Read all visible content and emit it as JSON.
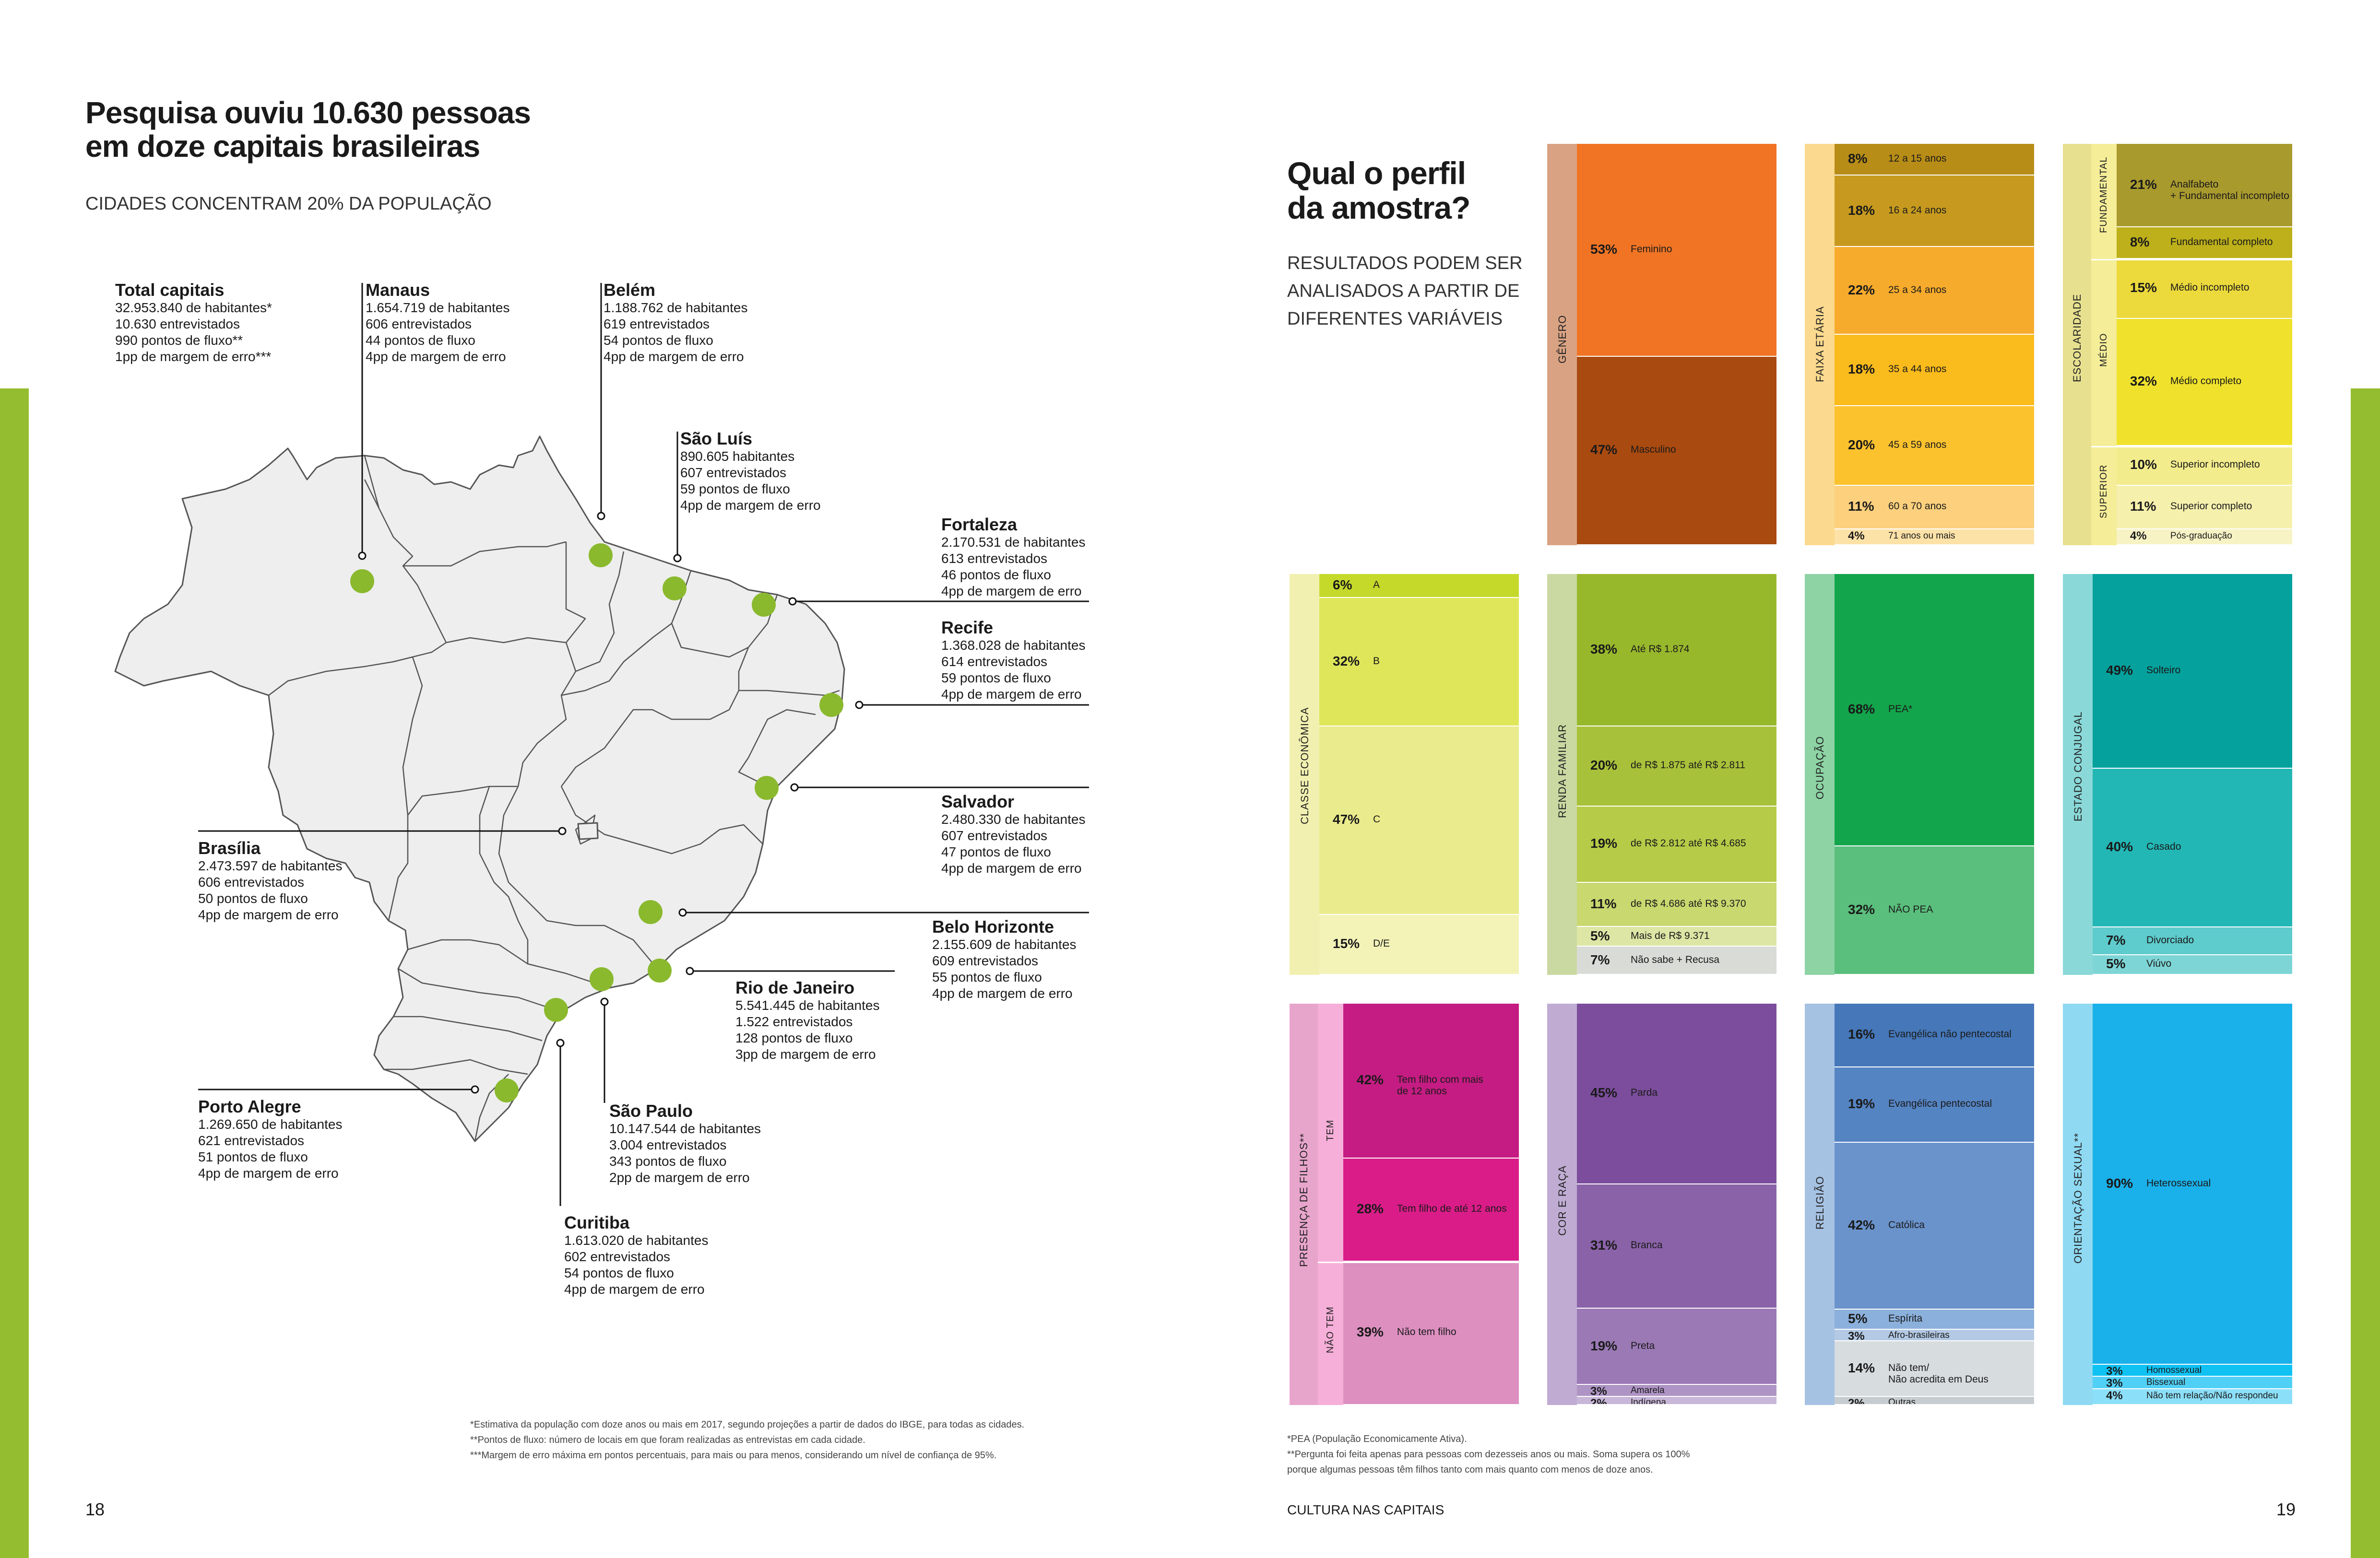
{
  "left_page": {
    "title_line1": "Pesquisa ouviu 10.630 pessoas",
    "title_line2": "em doze capitais brasileiras",
    "subtitle": "CIDADES CONCENTRAM 20% DA POPULAÇÃO",
    "page_number": "18",
    "footnotes": [
      "*Estimativa da população com doze anos ou mais em 2017, segundo projeções a partir de dados do IBGE, para todas as cidades.",
      "**Pontos de fluxo: número de locais em que foram realizadas as entrevistas em cada cidade.",
      "***Margem de erro máxima em pontos percentuais, para mais ou para menos, considerando um nível de confiança de 95%."
    ],
    "cities": {
      "total": {
        "name": "Total capitais",
        "lines": [
          "32.953.840 de habitantes*",
          "10.630 entrevistados",
          "990 pontos de fluxo**",
          "1pp de margem de erro***"
        ]
      },
      "manaus": {
        "name": "Manaus",
        "lines": [
          "1.654.719 de habitantes",
          "606 entrevistados",
          "44 pontos de fluxo",
          "4pp de margem de erro"
        ]
      },
      "belem": {
        "name": "Belém",
        "lines": [
          "1.188.762 de habitantes",
          "619 entrevistados",
          "54 pontos de fluxo",
          "4pp de margem de erro"
        ]
      },
      "saoluis": {
        "name": "São Luís",
        "lines": [
          "890.605 habitantes",
          "607 entrevistados",
          "59 pontos de fluxo",
          "4pp de margem de erro"
        ]
      },
      "fortaleza": {
        "name": "Fortaleza",
        "lines": [
          "2.170.531 de habitantes",
          "613 entrevistados",
          "46 pontos de fluxo",
          "4pp de margem de erro"
        ]
      },
      "recife": {
        "name": "Recife",
        "lines": [
          "1.368.028 de habitantes",
          "614 entrevistados",
          "59 pontos de fluxo",
          "4pp de margem de erro"
        ]
      },
      "salvador": {
        "name": "Salvador",
        "lines": [
          "2.480.330 de habitantes",
          "607 entrevistados",
          "47 pontos de fluxo",
          "4pp de margem de erro"
        ]
      },
      "brasilia": {
        "name": "Brasília",
        "lines": [
          "2.473.597 de habitantes",
          "606 entrevistados",
          "50 pontos de fluxo",
          "4pp de margem de erro"
        ]
      },
      "bh": {
        "name": "Belo Horizonte",
        "lines": [
          "2.155.609 de habitantes",
          "609 entrevistados",
          "55 pontos de fluxo",
          "4pp de margem de erro"
        ]
      },
      "rio": {
        "name": "Rio de Janeiro",
        "lines": [
          "5.541.445 de habitantes",
          "1.522 entrevistados",
          "128 pontos de fluxo",
          "3pp de margem de erro"
        ]
      },
      "portoalegre": {
        "name": "Porto Alegre",
        "lines": [
          "1.269.650 de habitantes",
          "621 entrevistados",
          "51 pontos de fluxo",
          "4pp de margem de erro"
        ]
      },
      "saopaulo": {
        "name": "São Paulo",
        "lines": [
          "10.147.544 de habitantes",
          "3.004 entrevistados",
          "343 pontos de fluxo",
          "2pp de margem de erro"
        ]
      },
      "curitiba": {
        "name": "Curitiba",
        "lines": [
          "1.613.020 de habitantes",
          "602 entrevistados",
          "54 pontos de fluxo",
          "4pp de margem de erro"
        ]
      }
    }
  },
  "right_page": {
    "title_line1": "Qual o perfil",
    "title_line2": "da amostra?",
    "subtitle_lines": [
      "RESULTADOS PODEM SER",
      "ANALISADOS A PARTIR DE",
      "DIFERENTES VARIÁVEIS"
    ],
    "footer_title": "CULTURA NAS CAPITAIS",
    "page_number": "19",
    "footnotes": [
      "*PEA (População Economicamente Ativa).",
      "**Pergunta foi feita apenas para pessoas com dezesseis anos ou mais. Soma supera os 100%",
      "porque algumas pessoas têm filhos tanto com mais quanto com menos de doze anos."
    ]
  },
  "chart_data": [
    {
      "type": "stacked-bar",
      "title": "GÊNERO",
      "colors": [
        "#f07424",
        "#a94a10"
      ],
      "strip": "#d9a383",
      "segments": [
        {
          "pct": "53%",
          "label": "Feminino",
          "value": 53
        },
        {
          "pct": "47%",
          "label": "Masculino",
          "value": 47
        }
      ]
    },
    {
      "type": "stacked-bar",
      "title": "FAIXA ETÁRIA",
      "colors": [
        "#b88d17",
        "#c79a1f",
        "#f6ab2c",
        "#fabb1c",
        "#fcc22e",
        "#fcd07d",
        "#fde2a8"
      ],
      "strip": "#fbd98e",
      "segments": [
        {
          "pct": "8%",
          "label": "12 a 15 anos",
          "value": 8
        },
        {
          "pct": "18%",
          "label": "16 a 24 anos",
          "value": 18
        },
        {
          "pct": "22%",
          "label": "25 a 34 anos",
          "value": 22
        },
        {
          "pct": "18%",
          "label": "35 a 44 anos",
          "value": 18
        },
        {
          "pct": "20%",
          "label": "45 a 59 anos",
          "value": 20
        },
        {
          "pct": "11%",
          "label": "60 a 70 anos",
          "value": 11
        },
        {
          "pct": "4%",
          "label": "71 anos ou mais",
          "value": 4
        }
      ]
    },
    {
      "type": "stacked-bar",
      "title": "ESCOLARIDADE",
      "sub_groups": [
        "FUNDAMENTAL",
        "MÉDIO",
        "SUPERIOR"
      ],
      "colors": [
        "#a99a2e",
        "#bdb01a",
        "#ecd93c",
        "#f0e22c",
        "#f3ec8d",
        "#f6f0ad",
        "#f8f3c5"
      ],
      "strip": "#e7e08f",
      "segments": [
        {
          "pct": "21%",
          "label": "Analfabeto\n+ Fundamental incompleto",
          "value": 21
        },
        {
          "pct": "8%",
          "label": "Fundamental completo",
          "value": 8
        },
        {
          "pct": "15%",
          "label": "Médio incompleto",
          "value": 15
        },
        {
          "pct": "32%",
          "label": "Médio completo",
          "value": 32
        },
        {
          "pct": "10%",
          "label": "Superior incompleto",
          "value": 10
        },
        {
          "pct": "11%",
          "label": "Superior completo",
          "value": 11
        },
        {
          "pct": "4%",
          "label": "Pós-graduação",
          "value": 4
        }
      ]
    },
    {
      "type": "stacked-bar",
      "title": "CLASSE ECONÔMICA",
      "colors": [
        "#c5d92b",
        "#dfe65a",
        "#eaeb8c",
        "#f3f3b8"
      ],
      "strip": "#f1f0b0",
      "segments": [
        {
          "pct": "6%",
          "label": "A",
          "value": 6
        },
        {
          "pct": "32%",
          "label": "B",
          "value": 32
        },
        {
          "pct": "47%",
          "label": "C",
          "value": 47
        },
        {
          "pct": "15%",
          "label": "D/E",
          "value": 15
        }
      ]
    },
    {
      "type": "stacked-bar",
      "title": "RENDA FAMILIAR",
      "colors": [
        "#98b82c",
        "#a8c13a",
        "#b6cb47",
        "#c9d86f",
        "#dde6a5",
        "#d9dcd6"
      ],
      "strip": "#cad9a2",
      "segments": [
        {
          "pct": "38%",
          "label": "Até R$ 1.874",
          "value": 38
        },
        {
          "pct": "20%",
          "label": "de R$ 1.875 até R$ 2.811",
          "value": 20
        },
        {
          "pct": "19%",
          "label": "de R$ 2.812 até R$ 4.685",
          "value": 19
        },
        {
          "pct": "11%",
          "label": "de R$ 4.686 até R$ 9.370",
          "value": 11
        },
        {
          "pct": "5%",
          "label": "Mais de R$ 9.371",
          "value": 5
        },
        {
          "pct": "7%",
          "label": "Não sabe + Recusa",
          "value": 7
        }
      ]
    },
    {
      "type": "stacked-bar",
      "title": "OCUPAÇÃO",
      "colors": [
        "#13a54b",
        "#5abf7c"
      ],
      "strip": "#8dd3a4",
      "segments": [
        {
          "pct": "68%",
          "label": "PEA*",
          "value": 68
        },
        {
          "pct": "32%",
          "label": "NÃO PEA",
          "value": 32
        }
      ]
    },
    {
      "type": "stacked-bar",
      "title": "ESTADO CONJUGAL",
      "colors": [
        "#04a19d",
        "#22b7b5",
        "#5ecbcc",
        "#7ed5d6"
      ],
      "strip": "#8ad8d8",
      "segments": [
        {
          "pct": "49%",
          "label": "Solteiro",
          "value": 49
        },
        {
          "pct": "40%",
          "label": "Casado",
          "value": 40
        },
        {
          "pct": "7%",
          "label": "Divorciado",
          "value": 7
        },
        {
          "pct": "5%",
          "label": "Viúvo",
          "value": 5
        }
      ]
    },
    {
      "type": "stacked-bar",
      "title": "PRESENÇA DE FILHOS**",
      "sub_groups": [
        "TEM",
        "NÃO TEM"
      ],
      "colors": [
        "#c41c82",
        "#da1c88",
        "#dd8fc0"
      ],
      "strip": "#e8a5cc",
      "segments": [
        {
          "pct": "42%",
          "label": "Tem filho com mais\nde 12 anos",
          "value": 42
        },
        {
          "pct": "28%",
          "label": "Tem filho de até 12 anos",
          "value": 28
        },
        {
          "pct": "39%",
          "label": "Não tem filho",
          "value": 39
        }
      ]
    },
    {
      "type": "stacked-bar",
      "title": "COR E RAÇA",
      "colors": [
        "#7b4d9c",
        "#8a62a8",
        "#9b79b5",
        "#ae94c4",
        "#c8b7d9"
      ],
      "strip": "#c0acd3",
      "segments": [
        {
          "pct": "45%",
          "label": "Parda",
          "value": 45
        },
        {
          "pct": "31%",
          "label": "Branca",
          "value": 31
        },
        {
          "pct": "19%",
          "label": "Preta",
          "value": 19
        },
        {
          "pct": "3%",
          "label": "Amarela",
          "value": 3
        },
        {
          "pct": "2%",
          "label": "Indígena",
          "value": 2
        }
      ]
    },
    {
      "type": "stacked-bar",
      "title": "RELIGIÃO",
      "colors": [
        "#4577b9",
        "#5584c3",
        "#6a93cc",
        "#8bb0dc",
        "#b3c9e4",
        "#d7dcdf",
        "#c6ccd0"
      ],
      "strip": "#a6c2e3",
      "segments": [
        {
          "pct": "16%",
          "label": "Evangélica não pentecostal",
          "value": 16
        },
        {
          "pct": "19%",
          "label": "Evangélica pentecostal",
          "value": 19
        },
        {
          "pct": "42%",
          "label": "Católica",
          "value": 42
        },
        {
          "pct": "5%",
          "label": "Espírita",
          "value": 5
        },
        {
          "pct": "3%",
          "label": "Afro-brasileiras",
          "value": 3
        },
        {
          "pct": "14%",
          "label": "Não tem/\nNão acredita em Deus",
          "value": 14
        },
        {
          "pct": "2%",
          "label": "Outras",
          "value": 2
        }
      ]
    },
    {
      "type": "stacked-bar",
      "title": "ORIENTAÇÃO SEXUAL**",
      "colors": [
        "#1ab1ea",
        "#10c2f4",
        "#51d0f6",
        "#8cdff8"
      ],
      "strip": "#8fd9f2",
      "segments": [
        {
          "pct": "90%",
          "label": "Heterossexual",
          "value": 90
        },
        {
          "pct": "3%",
          "label": "Homossexual",
          "value": 3
        },
        {
          "pct": "3%",
          "label": "Bissexual",
          "value": 3
        },
        {
          "pct": "4%",
          "label": "Não tem relação/Não respondeu",
          "value": 4
        }
      ]
    }
  ],
  "accent": "#94bd2f",
  "map_fill": "#eeeeee",
  "map_stroke": "#555555",
  "marker_color": "#8ab92e"
}
